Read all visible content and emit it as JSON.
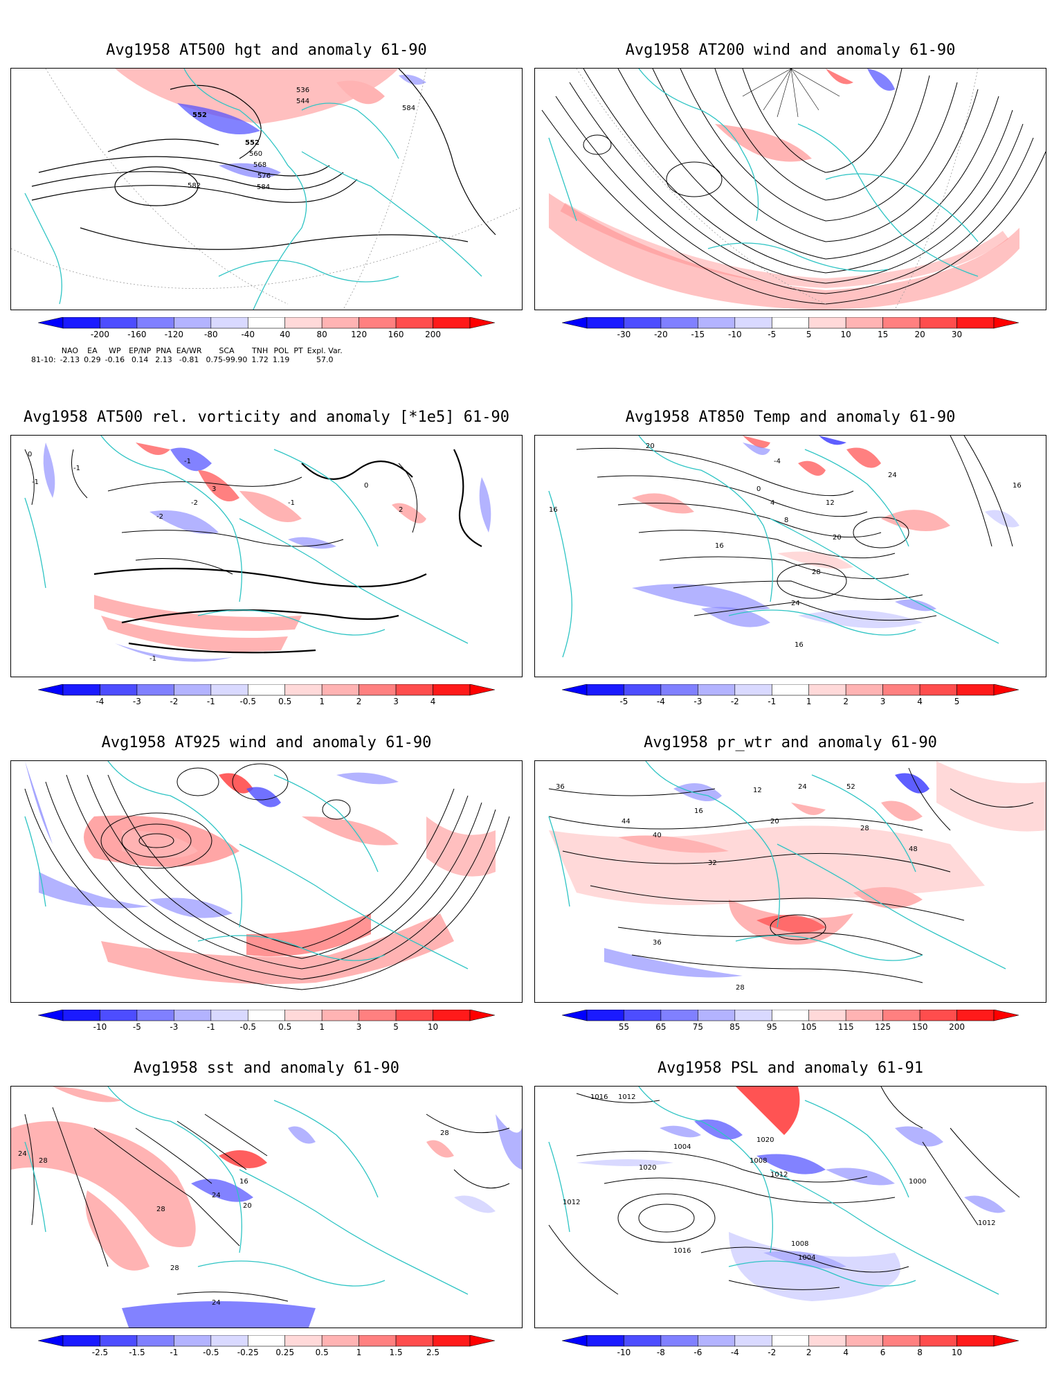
{
  "panels": [
    {
      "id": "p1",
      "title": "Avg1958 AT500 hgt and anomaly 61-90",
      "ticks": [
        "-200",
        "-160",
        "-120",
        "-80",
        "-40",
        "40",
        "80",
        "120",
        "160",
        "200"
      ],
      "labels": [
        "536",
        "544",
        "552",
        "552",
        "560",
        "568",
        "576",
        "584",
        "584",
        "582"
      ]
    },
    {
      "id": "p2",
      "title": "Avg1958 AT200 wind and anomaly 61-90",
      "ticks": [
        "-30",
        "-20",
        "-15",
        "-10",
        "-5",
        "5",
        "10",
        "15",
        "20",
        "30"
      ],
      "labels": []
    },
    {
      "id": "p3",
      "title": "Avg1958 AT500 rel. vorticity and anomaly [*1e5] 61-90",
      "ticks": [
        "-4",
        "-3",
        "-2",
        "-1",
        "-0.5",
        "0.5",
        "1",
        "2",
        "3",
        "4"
      ],
      "labels": [
        "-1",
        "-1",
        "0",
        "-1",
        "-2",
        "3",
        "-1",
        "-2",
        "2",
        "0",
        "-1"
      ]
    },
    {
      "id": "p4",
      "title": "Avg1958 AT850 Temp and anomaly 61-90",
      "ticks": [
        "-5",
        "-4",
        "-3",
        "-2",
        "-1",
        "1",
        "2",
        "3",
        "4",
        "5"
      ],
      "labels": [
        "20",
        "-4",
        "0",
        "4",
        "8",
        "12",
        "16",
        "16",
        "20",
        "24",
        "28",
        "24",
        "16",
        "16"
      ]
    },
    {
      "id": "p5",
      "title": "Avg1958 AT925 wind and anomaly 61-90",
      "ticks": [
        "-10",
        "-5",
        "-3",
        "-1",
        "-0.5",
        "0.5",
        "1",
        "3",
        "5",
        "10"
      ],
      "labels": []
    },
    {
      "id": "p6",
      "title": "Avg1958 pr_wtr and anomaly 61-90",
      "ticks": [
        "55",
        "65",
        "75",
        "85",
        "95",
        "105",
        "115",
        "125",
        "150",
        "200"
      ],
      "labels": [
        "12",
        "16",
        "20",
        "24",
        "28",
        "32",
        "36",
        "40",
        "44",
        "48",
        "52",
        "36",
        "28"
      ]
    },
    {
      "id": "p7",
      "title": "Avg1958 sst and anomaly 61-90",
      "ticks": [
        "-2.5",
        "-1.5",
        "-1",
        "-0.5",
        "-0.25",
        "0.25",
        "0.5",
        "1",
        "1.5",
        "2.5"
      ],
      "labels": [
        "24",
        "28",
        "28",
        "16",
        "20",
        "24",
        "28",
        "24",
        "28"
      ]
    },
    {
      "id": "p8",
      "title": "Avg1958 PSL and anomaly 61-91",
      "ticks": [
        "-10",
        "-8",
        "-6",
        "-4",
        "-2",
        "2",
        "4",
        "6",
        "8",
        "10"
      ],
      "labels": [
        "1016",
        "1012",
        "1004",
        "1020",
        "1012",
        "1008",
        "1000",
        "1020",
        "1016",
        "1004",
        "1008",
        "1012",
        "1012"
      ]
    }
  ],
  "indices": {
    "headers": [
      "NAO",
      "EA",
      "WP",
      "EP/NP",
      "PNA",
      "EA/WR",
      "SCA",
      "TNH",
      "POL",
      "PT",
      "Expl. Var."
    ],
    "row_label": "81-10:",
    "values": [
      "-2.13",
      "0.29",
      "-0.16",
      "0.14",
      "2.13",
      "-0.81",
      "0.75-99.90",
      "1.72",
      "1.19",
      "",
      "57.0"
    ]
  },
  "colors": {
    "blue": [
      "#1a1aff",
      "#4d4dff",
      "#8080ff",
      "#b3b3ff",
      "#d9d9ff"
    ],
    "red": [
      "#ffd9d9",
      "#ffb3b3",
      "#ff8080",
      "#ff4d4d",
      "#ff1a1a"
    ],
    "coast": "#2ec4c4"
  }
}
